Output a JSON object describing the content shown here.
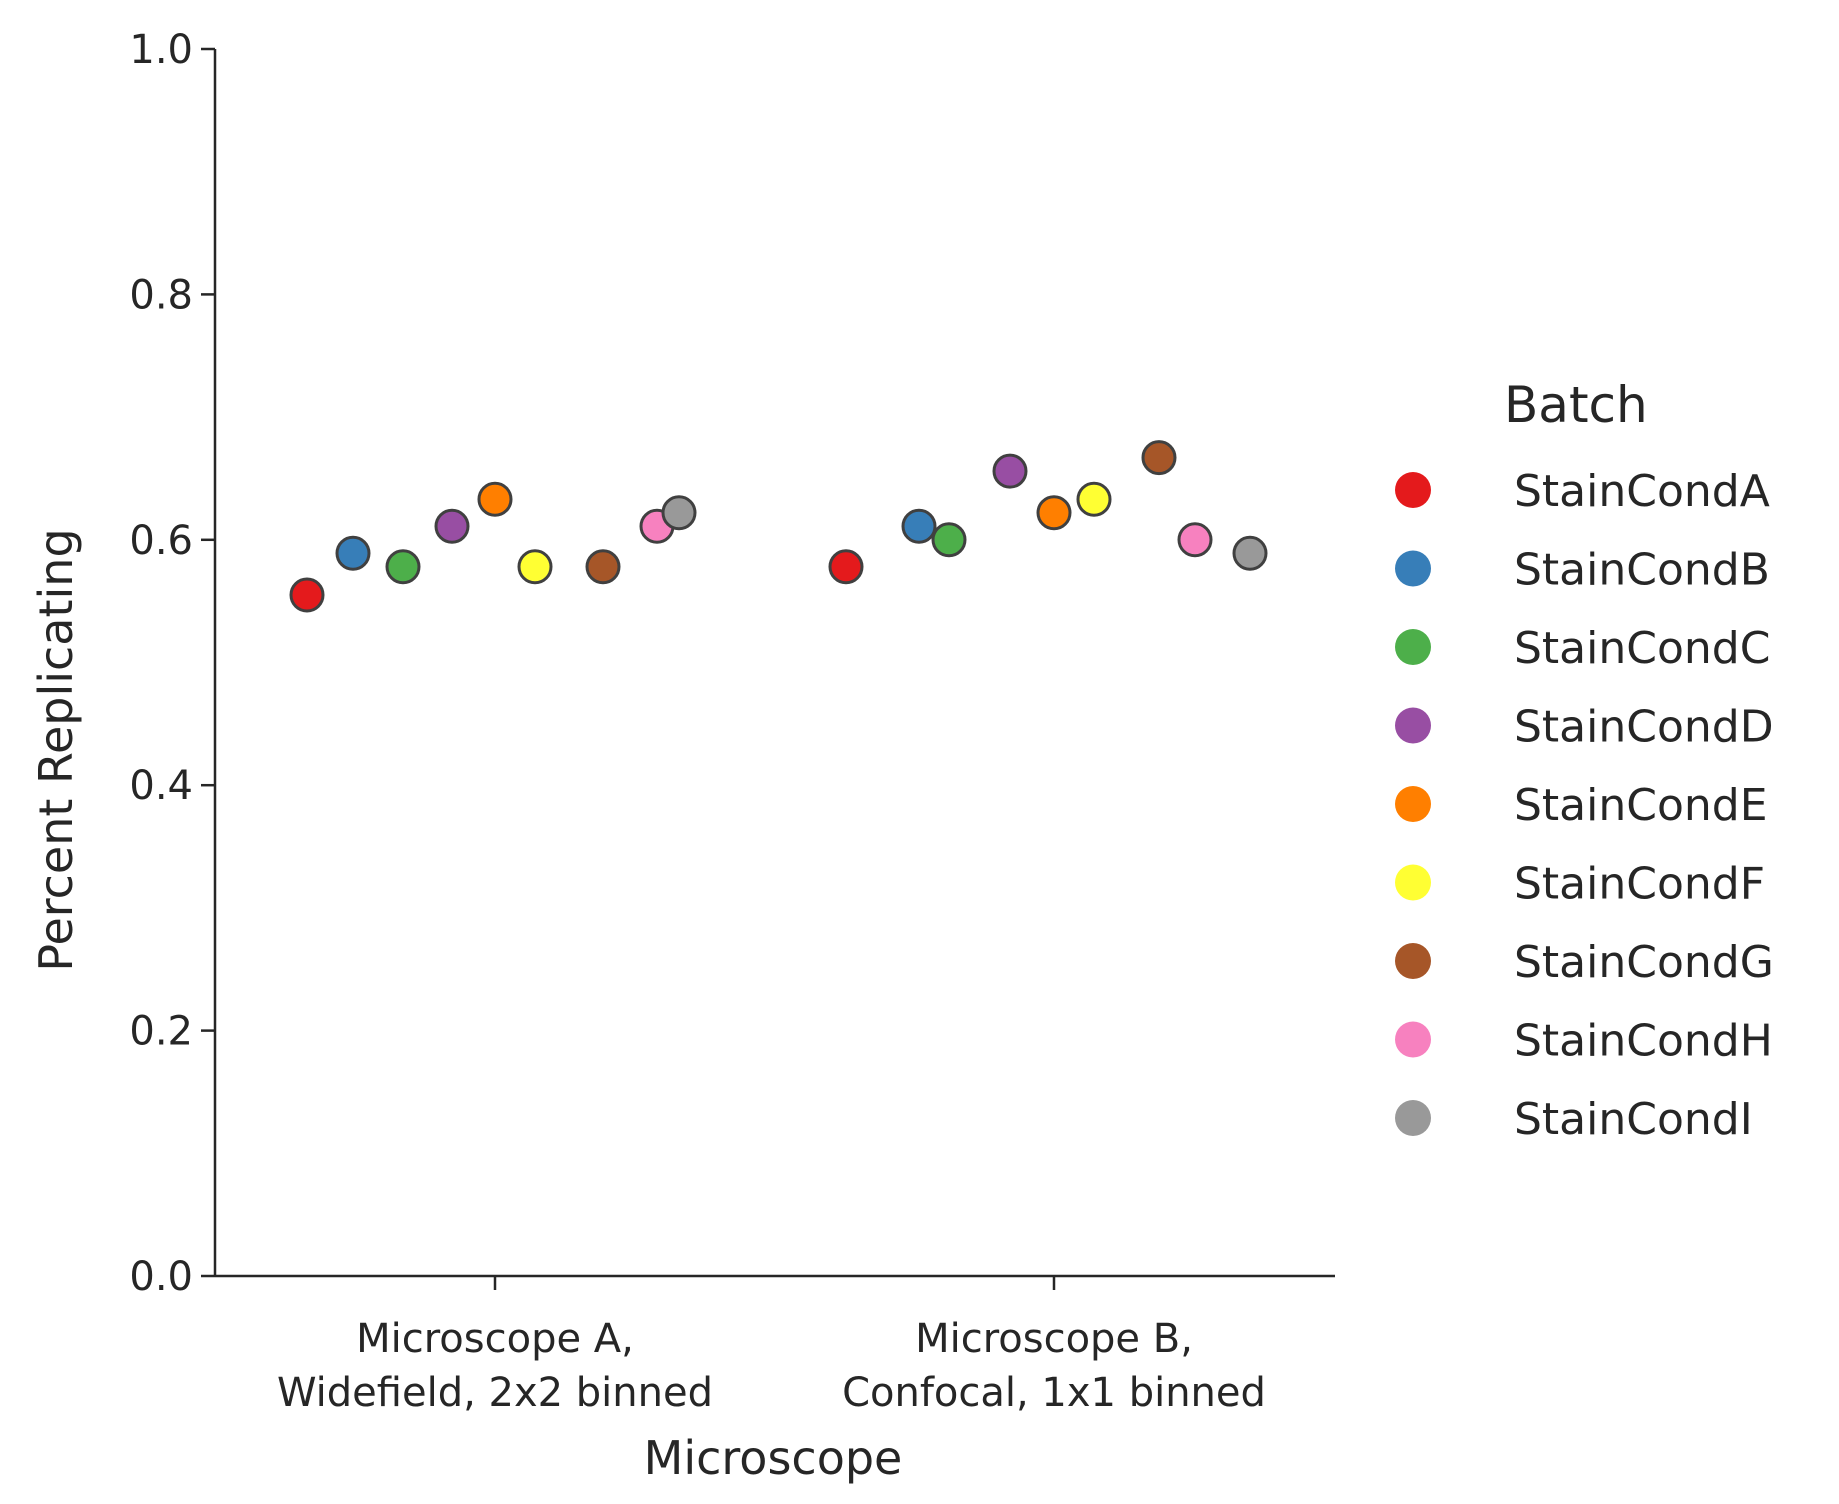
{
  "chart_data": {
    "type": "scatter",
    "xlabel": "Microscope",
    "ylabel": "Percent Replicating",
    "ylim": [
      0.0,
      1.0
    ],
    "yticks": [
      "0.0",
      "0.2",
      "0.4",
      "0.6",
      "0.8",
      "1.0"
    ],
    "categories": [
      {
        "line1": "Microscope A,",
        "line2": "Widefield, 2x2 binned"
      },
      {
        "line1": "Microscope B,",
        "line2": "Confocal, 1x1 binned"
      }
    ],
    "legend": {
      "title": "Batch",
      "position": "right"
    },
    "grid": false,
    "series": [
      {
        "name": "StainCondA",
        "color": "#e41a1c",
        "values": [
          0.555,
          0.578
        ]
      },
      {
        "name": "StainCondB",
        "color": "#377eb8",
        "values": [
          0.589,
          0.611
        ]
      },
      {
        "name": "StainCondC",
        "color": "#4daf4a",
        "values": [
          0.578,
          0.6
        ]
      },
      {
        "name": "StainCondD",
        "color": "#984ea3",
        "values": [
          0.611,
          0.656
        ]
      },
      {
        "name": "StainCondE",
        "color": "#ff7f00",
        "values": [
          0.633,
          0.622
        ]
      },
      {
        "name": "StainCondF",
        "color": "#ffff33",
        "values": [
          0.578,
          0.633
        ]
      },
      {
        "name": "StainCondG",
        "color": "#a65628",
        "values": [
          0.578,
          0.667
        ]
      },
      {
        "name": "StainCondH",
        "color": "#f781bf",
        "values": [
          0.611,
          0.6
        ]
      },
      {
        "name": "StainCondI",
        "color": "#999999",
        "values": [
          0.622,
          0.589
        ]
      }
    ]
  }
}
